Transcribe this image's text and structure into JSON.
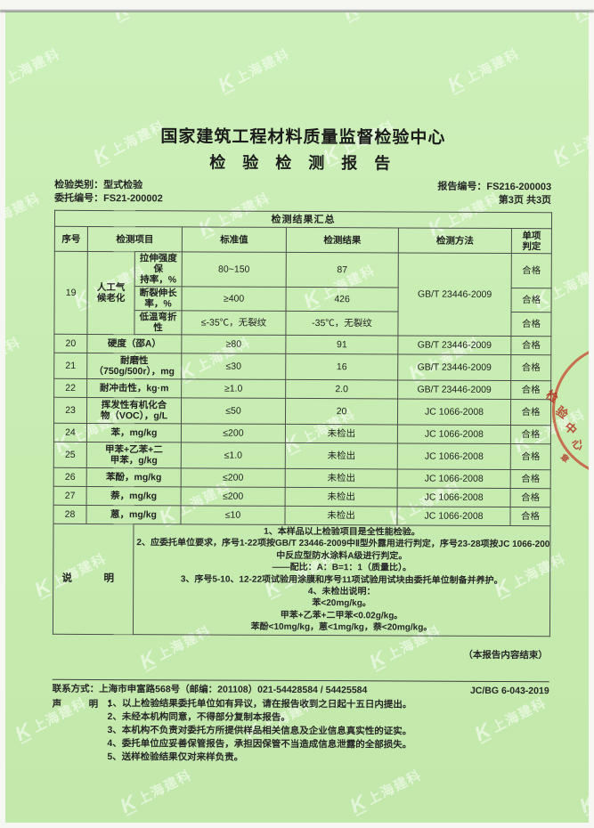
{
  "header": {
    "org_name": "国家建筑工程材料质量监督检验中心",
    "report_title": "检 验 检 测 报 告",
    "meta": {
      "type": "检验类别：型式检验",
      "report_no": "报告编号：FS216-200003",
      "client_no": "委托编号：FS21-200002",
      "pages": "第3页 共3页"
    }
  },
  "watermark": {
    "logo": "K",
    "text": "上海建科"
  },
  "seal": {
    "chars": [
      "检",
      "验",
      "中",
      "心"
    ],
    "small_char": "章"
  },
  "table": {
    "title": "检测结果汇总",
    "headers": {
      "no": "序号",
      "item": "检测项目",
      "standard": "标准值",
      "result": "检测结果",
      "method": "检测方法",
      "judge": "单项\n判定"
    },
    "row19": {
      "no": "19",
      "item": "人工气\n候老化",
      "method": "GB/T 23446-2009",
      "sub": [
        {
          "name": "拉伸强度保\n持率，%",
          "std": "80~150",
          "res": "87",
          "judge": "合格"
        },
        {
          "name": "断裂伸长率，%",
          "std": "≥400",
          "res": "426",
          "judge": "合格"
        },
        {
          "name": "低温弯折性",
          "std": "≤-35℃，无裂纹",
          "res": "-35℃，无裂纹",
          "judge": "合格"
        }
      ]
    },
    "rows": [
      {
        "no": "20",
        "item": "硬度（邵A）",
        "std": "≥80",
        "res": "91",
        "method": "GB/T 23446-2009",
        "judge": "合格"
      },
      {
        "no": "21",
        "item": "耐磨性\n（750g/500r），mg",
        "std": "≤30",
        "res": "16",
        "method": "GB/T 23446-2009",
        "judge": "合格"
      },
      {
        "no": "22",
        "item": "耐冲击性，kg·m",
        "std": "≥1.0",
        "res": "2.0",
        "method": "GB/T 23446-2009",
        "judge": "合格"
      },
      {
        "no": "23",
        "item": "挥发性有机化合\n物（VOC），g/L",
        "std": "≤50",
        "res": "20",
        "method": "JC 1066-2008",
        "judge": "合格"
      },
      {
        "no": "24",
        "item": "苯，mg/kg",
        "std": "≤200",
        "res": "未检出",
        "method": "JC 1066-2008",
        "judge": "合格"
      },
      {
        "no": "25",
        "item": "甲苯+乙苯+二\n甲苯，g/kg",
        "std": "≤1.0",
        "res": "未检出",
        "method": "JC 1066-2008",
        "judge": "合格"
      },
      {
        "no": "26",
        "item": "苯酚，mg/kg",
        "std": "≤200",
        "res": "未检出",
        "method": "JC 1066-2008",
        "judge": "合格"
      },
      {
        "no": "27",
        "item": "萘，mg/kg",
        "std": "≤200",
        "res": "未检出",
        "method": "JC 1066-2008",
        "judge": "合格"
      },
      {
        "no": "28",
        "item": "蒽，mg/kg",
        "std": "≤10",
        "res": "未检出",
        "method": "JC 1066-2008",
        "judge": "合格"
      }
    ],
    "notes": {
      "label": "说　明",
      "lines": [
        "1、本样品以上检验项目是全性能检验。",
        "2、应委托单位要求，序号1-22项按GB/T 23446-2009中Ⅱ型外露用进行判定，序号23-28项按JC 1066-2008",
        "中反应型防水涂料A级进行判定。",
        "——配比：A：B=1：1（质量比）。",
        "3、序号5-10、12-22项试验用涂膜和序号11项试验用试块由委托单位制备并养护。",
        "4、未检出说明：",
        "苯<20mg/kg。",
        "甲苯+乙苯+二甲苯<0.02g/kg。",
        "苯酚<10mg/kg，蒽<1mg/kg，萘<20mg/kg。"
      ]
    }
  },
  "footer": {
    "end_note": "（本报告内容结束）",
    "contact": "联系方式：上海市申富路568号（邮编：201108）021-54428584 / 54425584",
    "doc_code": "JC/BG 6-043-2019",
    "statement_label": "声　明：",
    "statement_lines": [
      "1、以上检验结果委托单位如有异议，请在报告收到之日起十五日内提出。",
      "2、未经本机构同意，不得部分复制本报告。",
      "3、本机构不负责对委托方所提供样品相关信息及企业信息真实性的证实。",
      "4、委托单位应妥善保管报告，承担因保管不当造成信息泄露的全部损失。",
      "5、送样检验结果仅对来样负责。"
    ]
  }
}
